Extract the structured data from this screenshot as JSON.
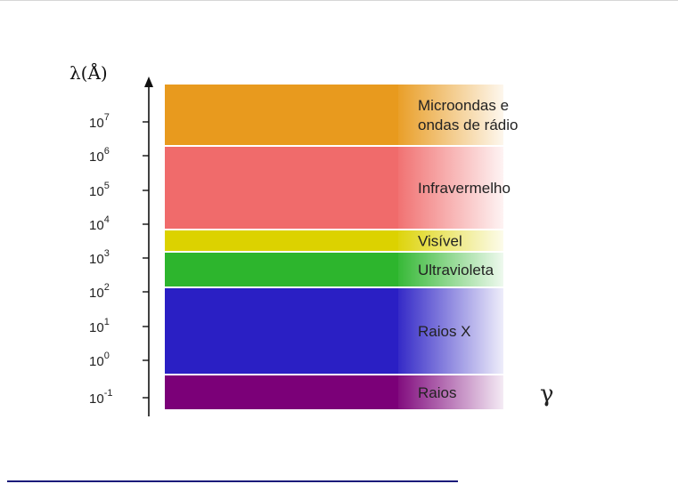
{
  "diagram": {
    "y_axis_label": "λ(Å)",
    "ticks": [
      {
        "base": "10",
        "exp": "7"
      },
      {
        "base": "10",
        "exp": "6"
      },
      {
        "base": "10",
        "exp": "5"
      },
      {
        "base": "10",
        "exp": "4"
      },
      {
        "base": "10",
        "exp": "3"
      },
      {
        "base": "10",
        "exp": "2"
      },
      {
        "base": "10",
        "exp": "1"
      },
      {
        "base": "10",
        "exp": "0"
      },
      {
        "base": "10",
        "exp": "-1"
      }
    ],
    "bands": [
      {
        "label_lines": [
          "Microondas e",
          "ondas de rádio"
        ],
        "color": "#e89a1e"
      },
      {
        "label_lines": [
          "Infravermelho"
        ],
        "color": "#f06b6b"
      },
      {
        "label_lines": [
          "Visível"
        ],
        "color": "#dcd200"
      },
      {
        "label_lines": [
          "Ultravioleta"
        ],
        "color": "#2db52d"
      },
      {
        "label_lines": [
          "Raios X"
        ],
        "color": "#2a1fc4"
      },
      {
        "label_lines": [
          "Raios"
        ],
        "color": "#7b0078"
      }
    ],
    "gamma_symbol": "γ"
  }
}
